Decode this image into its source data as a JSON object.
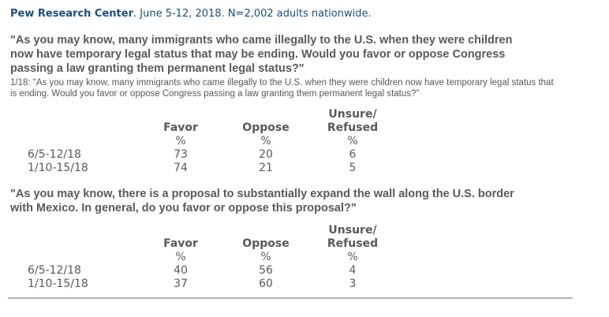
{
  "page": {
    "background": "#ffffff",
    "accent_navy": "#1c4e7c",
    "text_gray": "#58595b",
    "rule_color": "#b3b3b3"
  },
  "header": {
    "source_bold": "Pew Research Center",
    "source_rest": ". June 5-12, 2018. N=2,002 adults nationwide."
  },
  "sections": [
    {
      "question": "\"As you may know, many immigrants who came illegally to the U.S. when they were children\nnow have temporary legal status that may be ending. Would you favor or oppose Congress\npassing a law granting them permanent legal status?\"",
      "note": "1/18: \"As you may know, many immigrants who came illegally to the U.S. when they were children now have temporary legal status that\nis ending. Would you favor or oppose Congress passing a law granting them permanent legal status?\"",
      "table": {
        "columns": {
          "c1": "Favor",
          "c2": "Oppose",
          "c3_line1": "Unsure/",
          "c3_line2": "Refused"
        },
        "unit": "%",
        "rows": [
          {
            "label": "6/5-12/18",
            "favor": "73",
            "oppose": "20",
            "unsure": "6"
          },
          {
            "label": "1/10-15/18",
            "favor": "74",
            "oppose": "21",
            "unsure": "5"
          }
        ]
      }
    },
    {
      "question": "\"As you may know, there is a proposal to substantially expand the wall along the U.S. border\nwith Mexico. In general, do you favor or oppose this proposal?\"",
      "table": {
        "columns": {
          "c1": "Favor",
          "c2": "Oppose",
          "c3_line1": "Unsure/",
          "c3_line2": "Refused"
        },
        "unit": "%",
        "rows": [
          {
            "label": "6/5-12/18",
            "favor": "40",
            "oppose": "56",
            "unsure": "4"
          },
          {
            "label": "1/10-15/18",
            "favor": "37",
            "oppose": "60",
            "unsure": "3"
          }
        ]
      }
    }
  ]
}
